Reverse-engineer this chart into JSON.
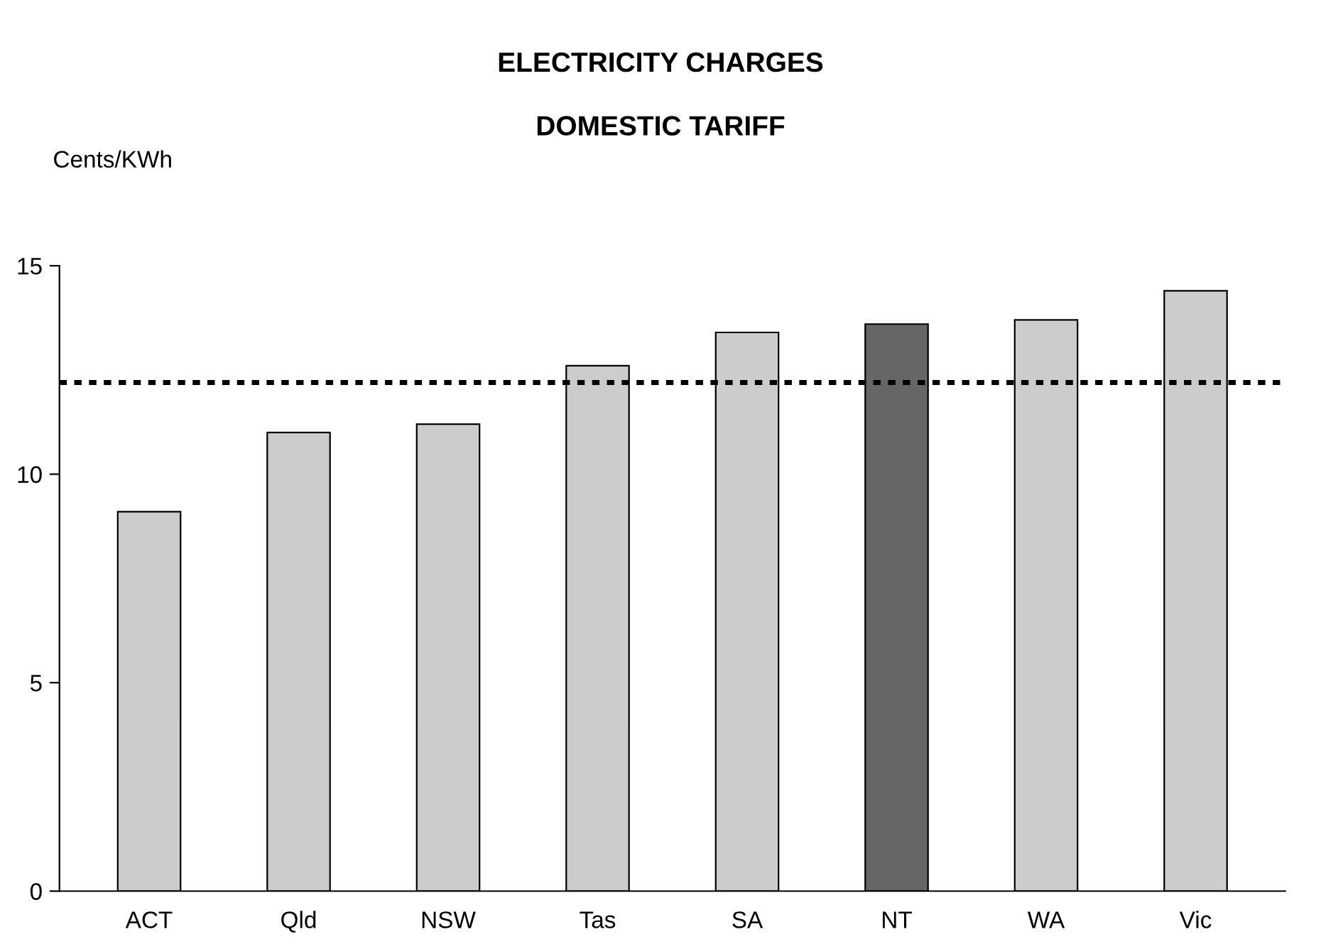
{
  "chart_data": {
    "type": "bar",
    "title": "ELECTRICITY CHARGES",
    "subtitle": "DOMESTIC TARIFF",
    "ylabel": "Cents/KWh",
    "categories": [
      "ACT",
      "Qld",
      "NSW",
      "Tas",
      "SA",
      "NT",
      "WA",
      "Vic"
    ],
    "values": [
      9.1,
      11.0,
      11.2,
      12.6,
      13.4,
      13.6,
      13.7,
      14.4
    ],
    "colors": [
      "#cccccc",
      "#cccccc",
      "#cccccc",
      "#cccccc",
      "#cccccc",
      "#666666",
      "#cccccc",
      "#cccccc"
    ],
    "ylim": [
      0,
      15
    ],
    "yticks": [
      0,
      5,
      10,
      15
    ],
    "grid": false,
    "legend": false,
    "ref_lines": [
      {
        "axis": "y",
        "value": 12.2,
        "label": null,
        "color": "#000000",
        "line_style": "dotted"
      }
    ]
  }
}
